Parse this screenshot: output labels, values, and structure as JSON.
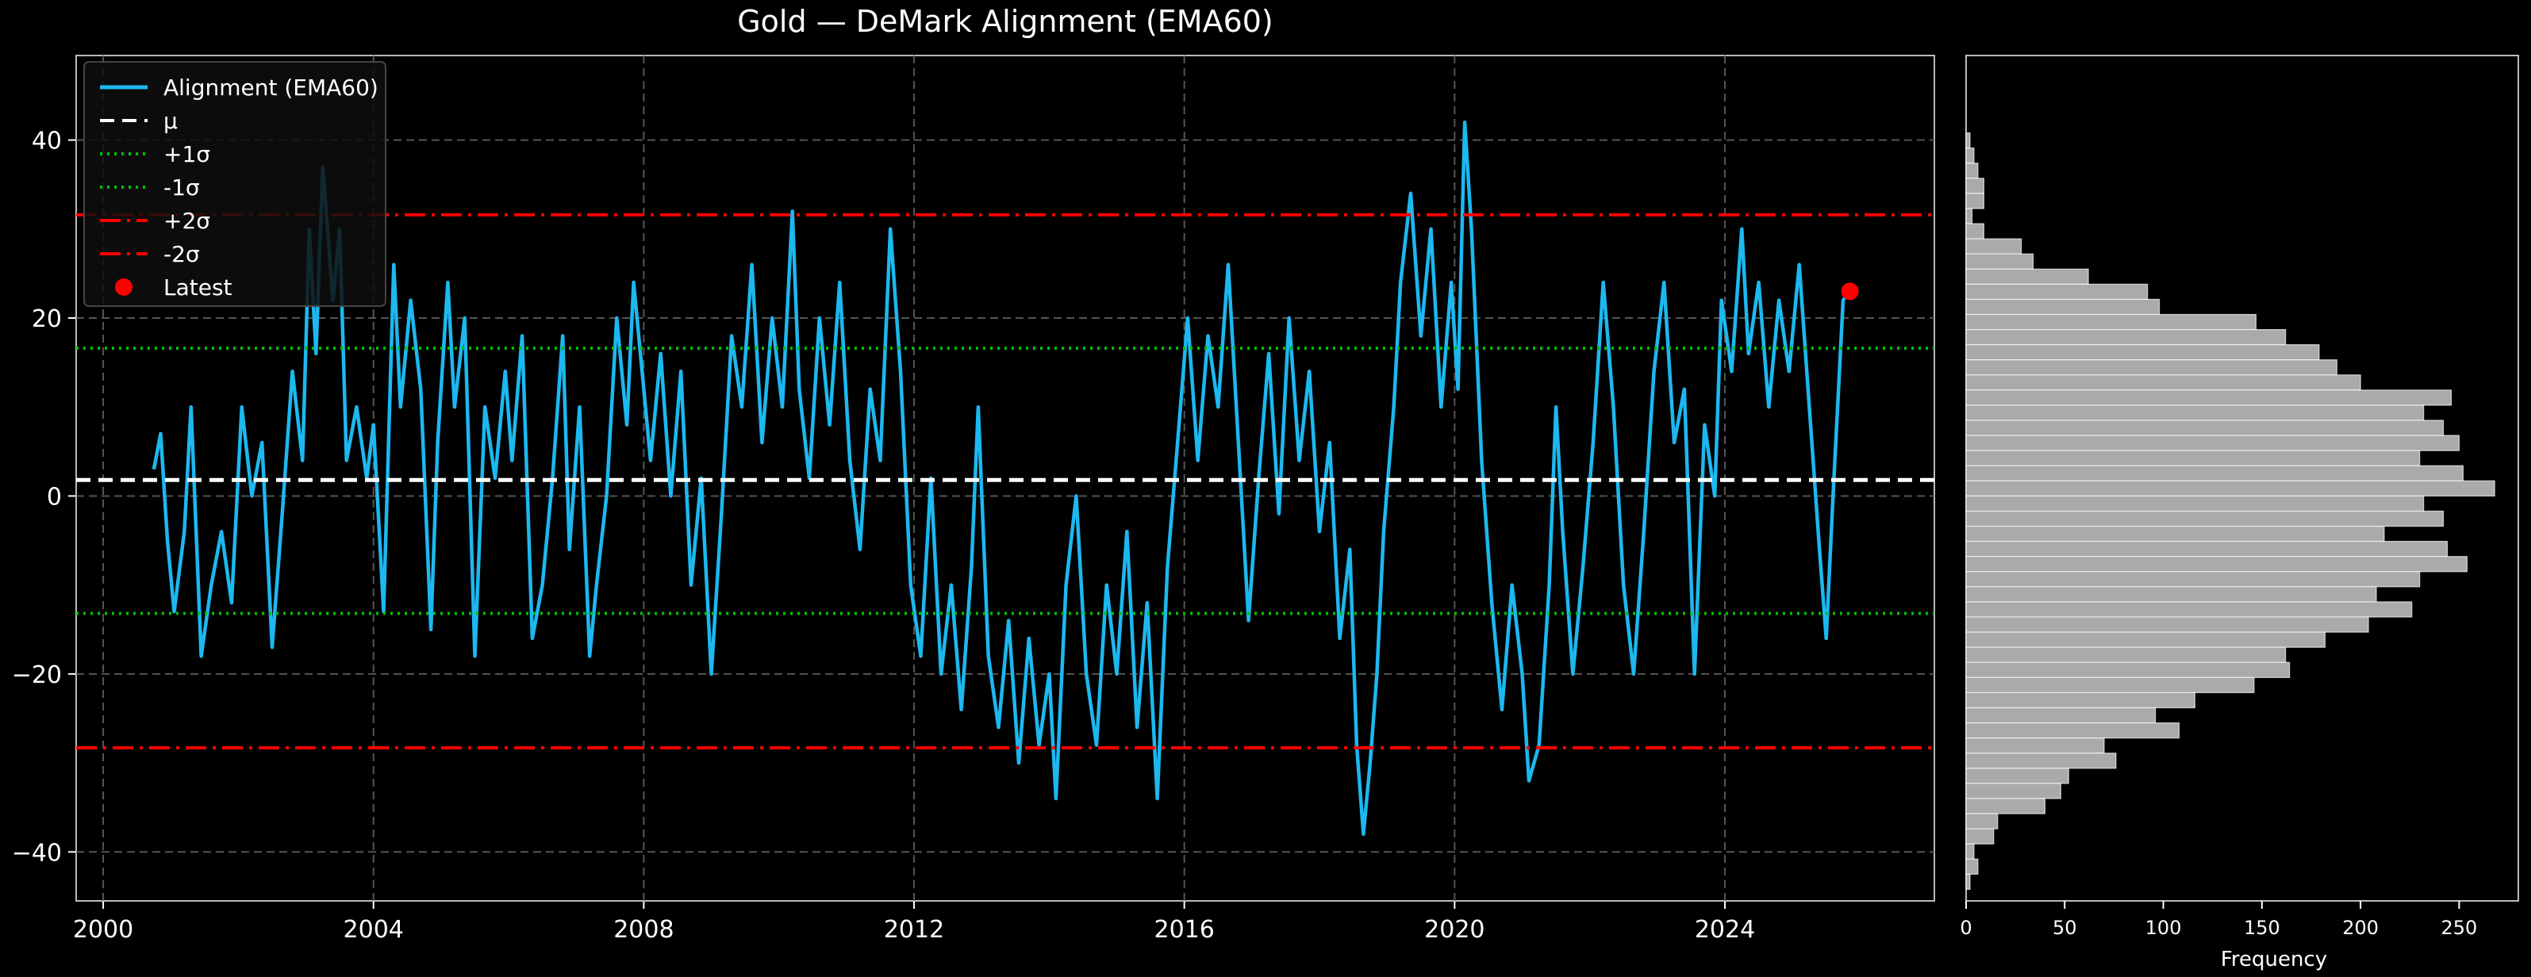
{
  "chart_data": [
    {
      "type": "line",
      "title": "Gold — DeMark Alignment (EMA60)",
      "xlabel": "",
      "ylabel": "",
      "xlim": [
        1999.6,
        2027.1
      ],
      "ylim": [
        -45.5,
        49.5
      ],
      "x_ticks": [
        "2000",
        "2004",
        "2008",
        "2012",
        "2016",
        "2020",
        "2024"
      ],
      "y_ticks": [
        -40,
        -20,
        0,
        20,
        40
      ],
      "y_tick_labels": [
        "−40",
        "−20",
        "0",
        "20",
        "40"
      ],
      "grid": true,
      "legend_position": "top-left",
      "legend": [
        {
          "label": "Alignment (EMA60)",
          "style": "solid",
          "color": "#1cb8f0"
        },
        {
          "label": "μ",
          "style": "dashed",
          "color": "#ffffff"
        },
        {
          "label": "+1σ",
          "style": "dotted",
          "color": "#00c000"
        },
        {
          "label": "-1σ",
          "style": "dotted",
          "color": "#00c000"
        },
        {
          "label": "+2σ",
          "style": "dashdot",
          "color": "#ff0000"
        },
        {
          "label": "-2σ",
          "style": "dashdot",
          "color": "#ff0000"
        },
        {
          "label": "Latest",
          "style": "marker",
          "color": "#ff0000"
        }
      ],
      "reference_lines": {
        "mu": 1.8,
        "plus_1sigma": 16.6,
        "minus_1sigma": -13.2,
        "plus_2sigma": 31.6,
        "minus_2sigma": -28.3
      },
      "latest": {
        "x": 2025.85,
        "y": 23.0
      },
      "series": [
        {
          "name": "Alignment (EMA60)",
          "color": "#1cb8f0",
          "points": [
            [
              2000.75,
              3
            ],
            [
              2000.85,
              7
            ],
            [
              2000.95,
              -5
            ],
            [
              2001.05,
              -13
            ],
            [
              2001.2,
              -4
            ],
            [
              2001.3,
              10
            ],
            [
              2001.45,
              -18
            ],
            [
              2001.6,
              -10
            ],
            [
              2001.75,
              -4
            ],
            [
              2001.9,
              -12
            ],
            [
              2002.05,
              10
            ],
            [
              2002.2,
              0
            ],
            [
              2002.35,
              6
            ],
            [
              2002.5,
              -17
            ],
            [
              2002.65,
              -2
            ],
            [
              2002.8,
              14
            ],
            [
              2002.95,
              4
            ],
            [
              2003.05,
              30
            ],
            [
              2003.15,
              16
            ],
            [
              2003.25,
              37
            ],
            [
              2003.4,
              22
            ],
            [
              2003.5,
              30
            ],
            [
              2003.6,
              4
            ],
            [
              2003.75,
              10
            ],
            [
              2003.9,
              2
            ],
            [
              2004.0,
              8
            ],
            [
              2004.15,
              -13
            ],
            [
              2004.3,
              26
            ],
            [
              2004.4,
              10
            ],
            [
              2004.55,
              22
            ],
            [
              2004.7,
              12
            ],
            [
              2004.85,
              -15
            ],
            [
              2004.95,
              6
            ],
            [
              2005.1,
              24
            ],
            [
              2005.2,
              10
            ],
            [
              2005.35,
              20
            ],
            [
              2005.5,
              -18
            ],
            [
              2005.65,
              10
            ],
            [
              2005.8,
              2
            ],
            [
              2005.95,
              14
            ],
            [
              2006.05,
              4
            ],
            [
              2006.2,
              18
            ],
            [
              2006.35,
              -16
            ],
            [
              2006.5,
              -10
            ],
            [
              2006.65,
              2
            ],
            [
              2006.8,
              18
            ],
            [
              2006.9,
              -6
            ],
            [
              2007.05,
              10
            ],
            [
              2007.2,
              -18
            ],
            [
              2007.3,
              -10
            ],
            [
              2007.45,
              0
            ],
            [
              2007.6,
              20
            ],
            [
              2007.75,
              8
            ],
            [
              2007.85,
              24
            ],
            [
              2008.0,
              12
            ],
            [
              2008.1,
              4
            ],
            [
              2008.25,
              16
            ],
            [
              2008.4,
              0
            ],
            [
              2008.55,
              14
            ],
            [
              2008.7,
              -10
            ],
            [
              2008.85,
              2
            ],
            [
              2009.0,
              -20
            ],
            [
              2009.15,
              -2
            ],
            [
              2009.3,
              18
            ],
            [
              2009.45,
              10
            ],
            [
              2009.6,
              26
            ],
            [
              2009.75,
              6
            ],
            [
              2009.9,
              20
            ],
            [
              2010.05,
              10
            ],
            [
              2010.2,
              32
            ],
            [
              2010.3,
              12
            ],
            [
              2010.45,
              2
            ],
            [
              2010.6,
              20
            ],
            [
              2010.75,
              8
            ],
            [
              2010.9,
              24
            ],
            [
              2011.05,
              4
            ],
            [
              2011.2,
              -6
            ],
            [
              2011.35,
              12
            ],
            [
              2011.5,
              4
            ],
            [
              2011.65,
              30
            ],
            [
              2011.8,
              14
            ],
            [
              2011.95,
              -10
            ],
            [
              2012.1,
              -18
            ],
            [
              2012.25,
              2
            ],
            [
              2012.4,
              -20
            ],
            [
              2012.55,
              -10
            ],
            [
              2012.7,
              -24
            ],
            [
              2012.85,
              -8
            ],
            [
              2012.95,
              10
            ],
            [
              2013.1,
              -18
            ],
            [
              2013.25,
              -26
            ],
            [
              2013.4,
              -14
            ],
            [
              2013.55,
              -30
            ],
            [
              2013.7,
              -16
            ],
            [
              2013.85,
              -28
            ],
            [
              2014.0,
              -20
            ],
            [
              2014.1,
              -34
            ],
            [
              2014.25,
              -10
            ],
            [
              2014.4,
              0
            ],
            [
              2014.55,
              -20
            ],
            [
              2014.7,
              -28
            ],
            [
              2014.85,
              -10
            ],
            [
              2015.0,
              -20
            ],
            [
              2015.15,
              -4
            ],
            [
              2015.3,
              -26
            ],
            [
              2015.45,
              -12
            ],
            [
              2015.6,
              -34
            ],
            [
              2015.75,
              -8
            ],
            [
              2015.9,
              6
            ],
            [
              2016.05,
              20
            ],
            [
              2016.2,
              4
            ],
            [
              2016.35,
              18
            ],
            [
              2016.5,
              10
            ],
            [
              2016.65,
              26
            ],
            [
              2016.8,
              6
            ],
            [
              2016.95,
              -14
            ],
            [
              2017.1,
              2
            ],
            [
              2017.25,
              16
            ],
            [
              2017.4,
              -2
            ],
            [
              2017.55,
              20
            ],
            [
              2017.7,
              4
            ],
            [
              2017.85,
              14
            ],
            [
              2018.0,
              -4
            ],
            [
              2018.15,
              6
            ],
            [
              2018.3,
              -16
            ],
            [
              2018.45,
              -6
            ],
            [
              2018.55,
              -28
            ],
            [
              2018.65,
              -38
            ],
            [
              2018.75,
              -30
            ],
            [
              2018.85,
              -20
            ],
            [
              2018.95,
              -4
            ],
            [
              2019.1,
              10
            ],
            [
              2019.2,
              24
            ],
            [
              2019.35,
              34
            ],
            [
              2019.5,
              18
            ],
            [
              2019.65,
              30
            ],
            [
              2019.8,
              10
            ],
            [
              2019.95,
              24
            ],
            [
              2020.05,
              12
            ],
            [
              2020.15,
              42
            ],
            [
              2020.25,
              30
            ],
            [
              2020.4,
              4
            ],
            [
              2020.55,
              -12
            ],
            [
              2020.7,
              -24
            ],
            [
              2020.85,
              -10
            ],
            [
              2021.0,
              -20
            ],
            [
              2021.1,
              -32
            ],
            [
              2021.25,
              -28
            ],
            [
              2021.4,
              -10
            ],
            [
              2021.5,
              10
            ],
            [
              2021.6,
              -4
            ],
            [
              2021.75,
              -20
            ],
            [
              2021.9,
              -8
            ],
            [
              2022.05,
              6
            ],
            [
              2022.2,
              24
            ],
            [
              2022.35,
              10
            ],
            [
              2022.5,
              -10
            ],
            [
              2022.65,
              -20
            ],
            [
              2022.8,
              -4
            ],
            [
              2022.95,
              14
            ],
            [
              2023.1,
              24
            ],
            [
              2023.25,
              6
            ],
            [
              2023.4,
              12
            ],
            [
              2023.55,
              -20
            ],
            [
              2023.7,
              8
            ],
            [
              2023.85,
              0
            ],
            [
              2023.95,
              22
            ],
            [
              2024.1,
              14
            ],
            [
              2024.25,
              30
            ],
            [
              2024.35,
              16
            ],
            [
              2024.5,
              24
            ],
            [
              2024.65,
              10
            ],
            [
              2024.8,
              22
            ],
            [
              2024.95,
              14
            ],
            [
              2025.1,
              26
            ],
            [
              2025.25,
              10
            ],
            [
              2025.4,
              -6
            ],
            [
              2025.5,
              -16
            ],
            [
              2025.6,
              0
            ],
            [
              2025.75,
              22
            ],
            [
              2025.85,
              23
            ]
          ]
        }
      ]
    },
    {
      "type": "bar",
      "orientation": "horizontal",
      "xlabel": "Frequency",
      "x_ticks": [
        "0",
        "50",
        "100",
        "150",
        "200",
        "250"
      ],
      "xlim": [
        0,
        280
      ],
      "bin_start": 40.8,
      "bin_width": -1.7,
      "color": "#aaaaaa",
      "values": [
        2,
        4,
        6,
        9,
        9,
        3,
        9,
        28,
        34,
        62,
        92,
        98,
        147,
        162,
        179,
        188,
        200,
        246,
        232,
        242,
        250,
        230,
        252,
        268,
        232,
        242,
        212,
        244,
        254,
        230,
        208,
        226,
        204,
        182,
        162,
        164,
        146,
        116,
        96,
        108,
        70,
        76,
        52,
        48,
        40,
        16,
        14,
        4,
        6,
        2
      ]
    }
  ]
}
